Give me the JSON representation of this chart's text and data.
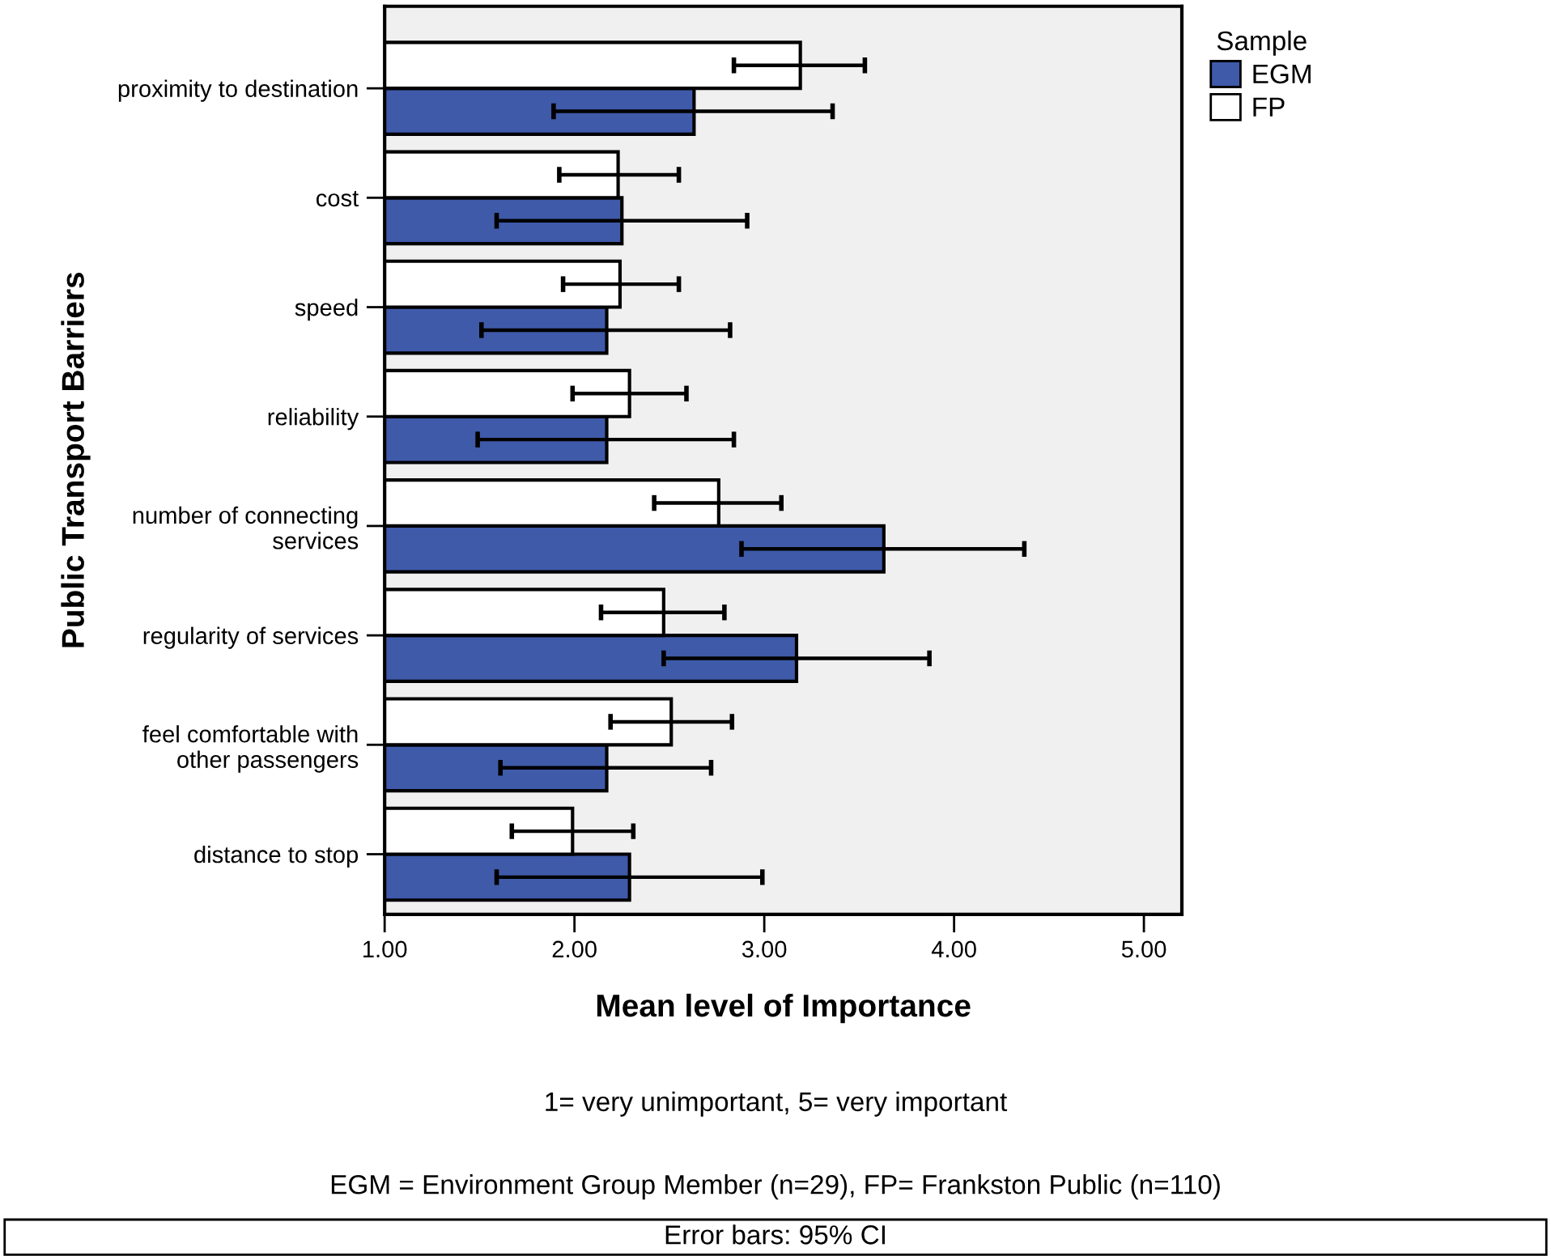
{
  "chart_data": {
    "type": "bar",
    "orientation": "horizontal",
    "xlabel": "Mean level of Importance",
    "ylabel": "Public Transport Barriers",
    "legend_title": "Sample",
    "categories": [
      "proximity to destination",
      "cost",
      "speed",
      "reliability",
      "number of connecting\nservices",
      "regularity of services",
      "feel comfortable with\nother passengers",
      "distance to stop"
    ],
    "series": [
      {
        "name": "EGM",
        "color": "#3f5aa9",
        "values": [
          2.63,
          2.25,
          2.17,
          2.17,
          3.63,
          3.17,
          2.17,
          2.29
        ],
        "errors": [
          [
            1.89,
            3.36
          ],
          [
            1.59,
            2.91
          ],
          [
            1.51,
            2.82
          ],
          [
            1.49,
            2.84
          ],
          [
            2.88,
            4.37
          ],
          [
            2.47,
            3.87
          ],
          [
            1.61,
            2.72
          ],
          [
            1.59,
            2.99
          ]
        ]
      },
      {
        "name": "FP",
        "color": "#ffffff",
        "values": [
          3.19,
          2.23,
          2.24,
          2.29,
          2.76,
          2.47,
          2.51,
          1.99
        ],
        "errors": [
          [
            2.84,
            3.53
          ],
          [
            1.92,
            2.55
          ],
          [
            1.94,
            2.55
          ],
          [
            1.99,
            2.59
          ],
          [
            2.42,
            3.09
          ],
          [
            2.14,
            2.79
          ],
          [
            2.19,
            2.83
          ],
          [
            1.67,
            2.31
          ]
        ]
      }
    ],
    "xlim": [
      1,
      5.2
    ],
    "xticks": [
      {
        "value": 1,
        "label": "1.00"
      },
      {
        "value": 2,
        "label": "2.00"
      },
      {
        "value": 3,
        "label": "3.00"
      },
      {
        "value": 4,
        "label": "4.00"
      },
      {
        "value": 5,
        "label": "5.00"
      }
    ],
    "legend": "top right",
    "grid": false,
    "annotations": [
      "1= very unimportant, 5= very important",
      "EGM = Environment Group Member (n=29), FP= Frankston Public (n=110)",
      "Error bars: 95% CI"
    ]
  }
}
